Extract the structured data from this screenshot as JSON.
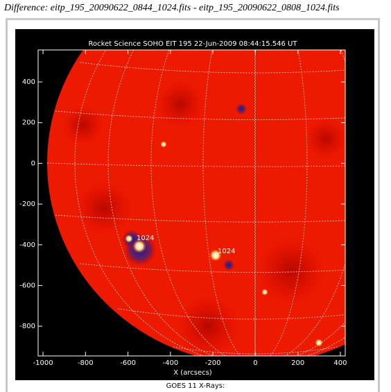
{
  "header": "Difference: eitp_195_20090622_0844_1024.fits - eitp_195_20090622_0808_1024.fits",
  "footer": "GOES 11 X-Rays:",
  "chart_data": {
    "type": "image",
    "title": "Rocket Science SOHO EIT 195 22-Jun-2009 08:44:15.546 UT",
    "xlabel": "X (arcsecs)",
    "xlim": [
      -1023,
      423
    ],
    "ylim": [
      -946,
      557
    ],
    "xticks": [
      -1000,
      -800,
      -600,
      -400,
      -200,
      0,
      200,
      400
    ],
    "yticks": [
      -800,
      -600,
      -400,
      -200,
      0,
      200,
      400
    ],
    "annotations": [
      "1024",
      "1024"
    ]
  }
}
